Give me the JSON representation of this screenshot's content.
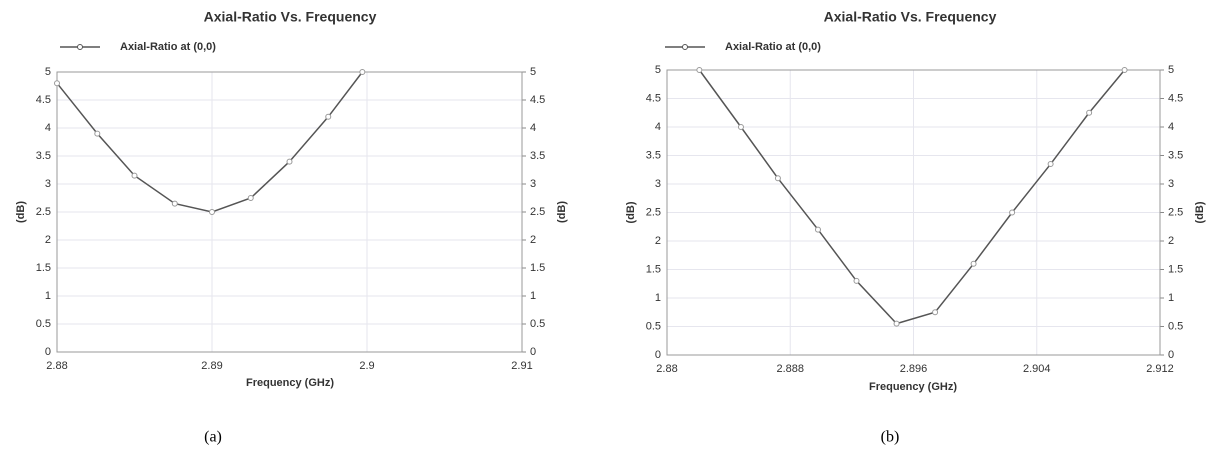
{
  "chart_data": [
    {
      "type": "line",
      "title": "Axial-Ratio Vs. Frequency",
      "xlabel": "Frequency (GHz)",
      "ylabel": "(dB)",
      "y2label": "(dB)",
      "caption": "(a)",
      "x": [
        2.88,
        2.8826,
        2.885,
        2.8876,
        2.89,
        2.8925,
        2.895,
        2.8975,
        2.8997
      ],
      "series": [
        {
          "name": "Axial-Ratio at (0,0)",
          "color": "#555555",
          "values": [
            4.8,
            3.9,
            3.15,
            2.65,
            2.5,
            2.75,
            3.4,
            4.2,
            5.0
          ]
        }
      ],
      "xlim": [
        2.88,
        2.91
      ],
      "xticks": [
        2.88,
        2.89,
        2.9,
        2.91
      ],
      "ylim": [
        0,
        5
      ],
      "yticks": [
        0,
        0.5,
        1,
        1.5,
        2,
        2.5,
        3,
        3.5,
        4,
        4.5,
        5
      ],
      "y2lim": [
        0,
        5
      ],
      "y2ticks": [
        0,
        0.5,
        1,
        1.5,
        2,
        2.5,
        3,
        3.5,
        4,
        4.5,
        5
      ],
      "grid": true,
      "legend": "top-left"
    },
    {
      "type": "line",
      "title": "Axial-Ratio Vs. Frequency",
      "xlabel": "Frequency (GHz)",
      "ylabel": "(dB)",
      "y2label": "(dB)",
      "caption": "(b)",
      "x": [
        2.8821,
        2.8848,
        2.8872,
        2.8898,
        2.8923,
        2.8949,
        2.8974,
        2.8999,
        2.9024,
        2.9049,
        2.9074,
        2.9097
      ],
      "series": [
        {
          "name": "Axial-Ratio at (0,0)",
          "color": "#555555",
          "values": [
            5.0,
            4.0,
            3.1,
            2.2,
            1.3,
            0.55,
            0.75,
            1.6,
            2.5,
            3.35,
            4.25,
            5.0
          ]
        }
      ],
      "xlim": [
        2.88,
        2.912
      ],
      "xticks": [
        2.88,
        2.888,
        2.896,
        2.904,
        2.912
      ],
      "ylim": [
        0,
        5
      ],
      "yticks": [
        0,
        0.5,
        1,
        1.5,
        2,
        2.5,
        3,
        3.5,
        4,
        4.5,
        5
      ],
      "y2lim": [
        0,
        5
      ],
      "y2ticks": [
        0,
        0.5,
        1,
        1.5,
        2,
        2.5,
        3,
        3.5,
        4,
        4.5,
        5
      ],
      "grid": true,
      "legend": "top-left"
    }
  ]
}
